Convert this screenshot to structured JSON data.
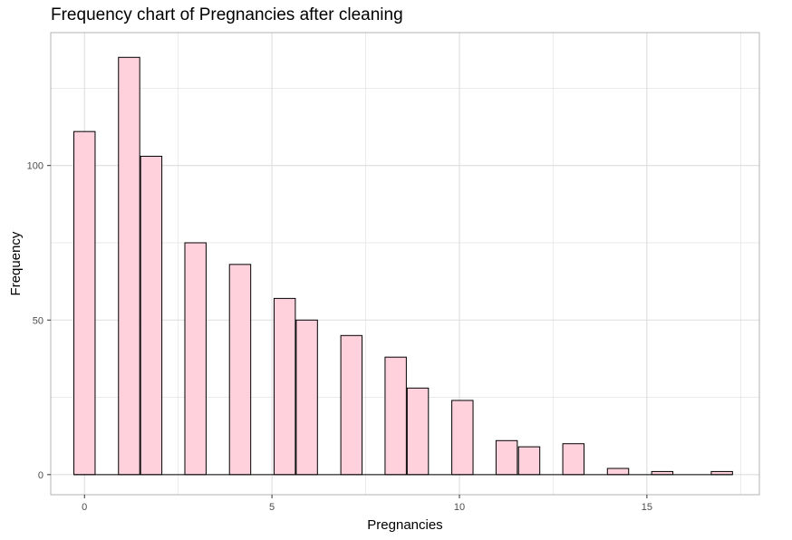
{
  "chart_data": {
    "type": "bar",
    "title": "Frequency chart of Pregnancies after cleaning",
    "xlabel": "Pregnancies",
    "ylabel": "Frequency",
    "xlim": [
      -0.9,
      18.0
    ],
    "ylim": [
      -6.5,
      143
    ],
    "x_ticks": [
      0,
      5,
      10,
      15
    ],
    "y_ticks": [
      0,
      50,
      100
    ],
    "bin_width": 0.5667,
    "bins": [
      {
        "x": 0.0,
        "value": 111
      },
      {
        "x": 1.19,
        "value": 135
      },
      {
        "x": 1.78,
        "value": 103
      },
      {
        "x": 2.96,
        "value": 75
      },
      {
        "x": 4.15,
        "value": 68
      },
      {
        "x": 5.34,
        "value": 57
      },
      {
        "x": 5.93,
        "value": 50
      },
      {
        "x": 7.12,
        "value": 45
      },
      {
        "x": 8.3,
        "value": 38
      },
      {
        "x": 8.89,
        "value": 28
      },
      {
        "x": 10.08,
        "value": 24
      },
      {
        "x": 11.26,
        "value": 11
      },
      {
        "x": 11.86,
        "value": 9
      },
      {
        "x": 13.04,
        "value": 10
      },
      {
        "x": 14.23,
        "value": 2
      },
      {
        "x": 15.41,
        "value": 1
      },
      {
        "x": 17.0,
        "value": 1
      }
    ],
    "grid": true,
    "bar_fill": "#ffd1dc",
    "bar_stroke": "#000000",
    "grid_color": "#dedede",
    "panel_border": "#b3b3b3"
  }
}
